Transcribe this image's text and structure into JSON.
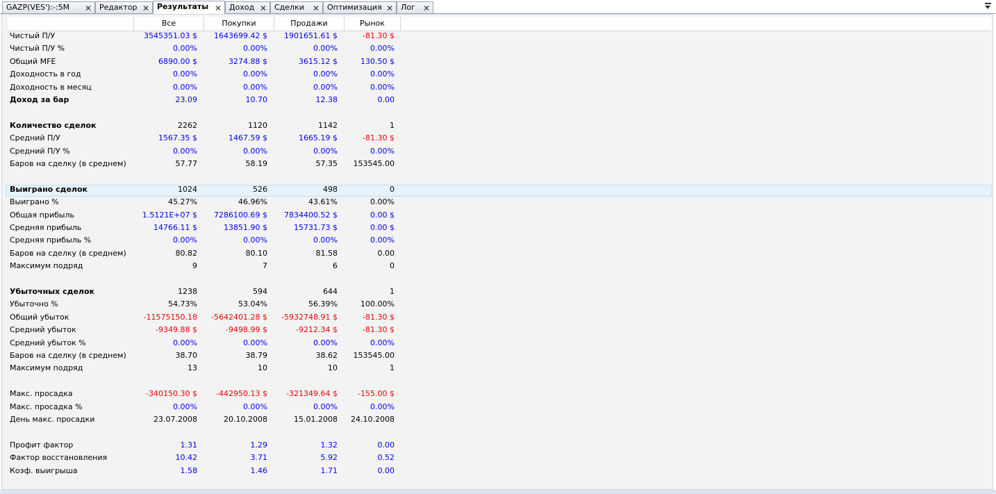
{
  "tabs": [
    {
      "label": "GAZP(VES'):-:5M",
      "active": false
    },
    {
      "label": "Редактор",
      "active": false
    },
    {
      "label": "Результаты",
      "active": true
    },
    {
      "label": "Доход",
      "active": false
    },
    {
      "label": "Сделки",
      "active": false
    },
    {
      "label": "Оптимизация",
      "active": false
    },
    {
      "label": "Лог",
      "active": false
    }
  ],
  "icons": {
    "close": "close-icon",
    "menu": "tab-list-dropdown-icon"
  },
  "colors": {
    "positive": "#0000ee",
    "negative": "#ee0000"
  },
  "columns": [
    "Все",
    "Покупки",
    "Продажи",
    "Рынок"
  ],
  "rows": [
    {
      "label": "Чистый П/У",
      "bold": false,
      "values": [
        "3545351.03 $",
        "1643699.42 $",
        "1901651.61 $",
        "-81.30 $"
      ],
      "colors": [
        "blue",
        "blue",
        "blue",
        "red"
      ]
    },
    {
      "label": "Чистый П/У %",
      "bold": false,
      "values": [
        "0.00%",
        "0.00%",
        "0.00%",
        "0.00%"
      ],
      "colors": [
        "blue",
        "blue",
        "blue",
        "blue"
      ]
    },
    {
      "label": "Общий MFE",
      "bold": false,
      "values": [
        "6890.00 $",
        "3274.88 $",
        "3615.12 $",
        "130.50 $"
      ],
      "colors": [
        "blue",
        "blue",
        "blue",
        "blue"
      ]
    },
    {
      "label": "Доходность в год",
      "bold": false,
      "values": [
        "0.00%",
        "0.00%",
        "0.00%",
        "0.00%"
      ],
      "colors": [
        "blue",
        "blue",
        "blue",
        "blue"
      ]
    },
    {
      "label": "Доходность в месяц",
      "bold": false,
      "values": [
        "0.00%",
        "0.00%",
        "0.00%",
        "0.00%"
      ],
      "colors": [
        "blue",
        "blue",
        "blue",
        "blue"
      ]
    },
    {
      "label": "Доход за бар",
      "bold": true,
      "values": [
        "23.09",
        "10.70",
        "12.38",
        "0.00"
      ],
      "colors": [
        "blue",
        "blue",
        "blue",
        "blue"
      ]
    },
    null,
    {
      "label": "Количество сделок",
      "bold": true,
      "values": [
        "2262",
        "1120",
        "1142",
        "1"
      ],
      "colors": [
        "black",
        "black",
        "black",
        "black"
      ]
    },
    {
      "label": "Средний П/У",
      "bold": false,
      "values": [
        "1567.35 $",
        "1467.59 $",
        "1665.19 $",
        "-81.30 $"
      ],
      "colors": [
        "blue",
        "blue",
        "blue",
        "red"
      ]
    },
    {
      "label": "Средний П/У %",
      "bold": false,
      "values": [
        "0.00%",
        "0.00%",
        "0.00%",
        "0.00%"
      ],
      "colors": [
        "blue",
        "blue",
        "blue",
        "blue"
      ]
    },
    {
      "label": "Баров на сделку (в среднем)",
      "bold": false,
      "values": [
        "57.77",
        "58.19",
        "57.35",
        "153545.00"
      ],
      "colors": [
        "black",
        "black",
        "black",
        "black"
      ]
    },
    null,
    {
      "label": "Выиграно сделок",
      "bold": true,
      "values": [
        "1024",
        "526",
        "498",
        "0"
      ],
      "colors": [
        "black",
        "black",
        "black",
        "black"
      ]
    },
    {
      "label": "Выиграно %",
      "bold": false,
      "values": [
        "45.27%",
        "46.96%",
        "43.61%",
        "0.00%"
      ],
      "colors": [
        "black",
        "black",
        "black",
        "black"
      ]
    },
    {
      "label": "Общая прибыль",
      "bold": false,
      "values": [
        "1.5121E+07 $",
        "7286100.69 $",
        "7834400.52 $",
        "0.00 $"
      ],
      "colors": [
        "blue",
        "blue",
        "blue",
        "blue"
      ]
    },
    {
      "label": "Средняя прибыль",
      "bold": false,
      "values": [
        "14766.11 $",
        "13851.90 $",
        "15731.73 $",
        "0.00 $"
      ],
      "colors": [
        "blue",
        "blue",
        "blue",
        "blue"
      ]
    },
    {
      "label": "Средняя прибыль %",
      "bold": false,
      "values": [
        "0.00%",
        "0.00%",
        "0.00%",
        "0.00%"
      ],
      "colors": [
        "blue",
        "blue",
        "blue",
        "blue"
      ]
    },
    {
      "label": "Баров на сделку (в среднем)",
      "bold": false,
      "values": [
        "80.82",
        "80.10",
        "81.58",
        "0.00"
      ],
      "colors": [
        "black",
        "black",
        "black",
        "black"
      ]
    },
    {
      "label": "Максимум подряд",
      "bold": false,
      "values": [
        "9",
        "7",
        "6",
        "0"
      ],
      "colors": [
        "black",
        "black",
        "black",
        "black"
      ]
    },
    null,
    {
      "label": "Убыточных сделок",
      "bold": true,
      "values": [
        "1238",
        "594",
        "644",
        "1"
      ],
      "colors": [
        "black",
        "black",
        "black",
        "black"
      ]
    },
    {
      "label": "Убыточно %",
      "bold": false,
      "values": [
        "54.73%",
        "53.04%",
        "56.39%",
        "100.00%"
      ],
      "colors": [
        "black",
        "black",
        "black",
        "black"
      ]
    },
    {
      "label": "Общий убыток",
      "bold": false,
      "values": [
        "-11575150.18",
        "-5642401.28 $",
        "-5932748.91 $",
        "-81.30 $"
      ],
      "colors": [
        "red",
        "red",
        "red",
        "red"
      ]
    },
    {
      "label": "Средний убыток",
      "bold": false,
      "values": [
        "-9349.88 $",
        "-9498.99 $",
        "-9212.34 $",
        "-81.30 $"
      ],
      "colors": [
        "red",
        "red",
        "red",
        "red"
      ]
    },
    {
      "label": "Средний убыток %",
      "bold": false,
      "values": [
        "0.00%",
        "0.00%",
        "0.00%",
        "0.00%"
      ],
      "colors": [
        "blue",
        "blue",
        "blue",
        "blue"
      ]
    },
    {
      "label": "Баров на сделку (в среднем)",
      "bold": false,
      "values": [
        "38.70",
        "38.79",
        "38.62",
        "153545.00"
      ],
      "colors": [
        "black",
        "black",
        "black",
        "black"
      ]
    },
    {
      "label": "Максимум подряд",
      "bold": false,
      "values": [
        "13",
        "10",
        "10",
        "1"
      ],
      "colors": [
        "black",
        "black",
        "black",
        "black"
      ]
    },
    null,
    {
      "label": "Макс. просадка",
      "bold": false,
      "values": [
        "-340150.30 $",
        "-442950.13 $",
        "-321349.64 $",
        "-155.00 $"
      ],
      "colors": [
        "red",
        "red",
        "red",
        "red"
      ]
    },
    {
      "label": "Макс. просадка %",
      "bold": false,
      "values": [
        "0.00%",
        "0.00%",
        "0.00%",
        "0.00%"
      ],
      "colors": [
        "blue",
        "blue",
        "blue",
        "blue"
      ]
    },
    {
      "label": "День макс. просадки",
      "bold": false,
      "values": [
        "23.07.2008",
        "20.10.2008",
        "15.01.2008",
        "24.10.2008"
      ],
      "colors": [
        "black",
        "black",
        "black",
        "black"
      ]
    },
    null,
    {
      "label": "Профит фактор",
      "bold": false,
      "values": [
        "1.31",
        "1.29",
        "1.32",
        "0.00"
      ],
      "colors": [
        "blue",
        "blue",
        "blue",
        "blue"
      ]
    },
    {
      "label": "Фактор восстановления",
      "bold": false,
      "values": [
        "10.42",
        "3.71",
        "5.92",
        "0.52"
      ],
      "colors": [
        "blue",
        "blue",
        "blue",
        "blue"
      ]
    },
    {
      "label": "Коэф. выигрыша",
      "bold": false,
      "values": [
        "1.58",
        "1.46",
        "1.71",
        "0.00"
      ],
      "colors": [
        "blue",
        "blue",
        "blue",
        "blue"
      ]
    }
  ]
}
